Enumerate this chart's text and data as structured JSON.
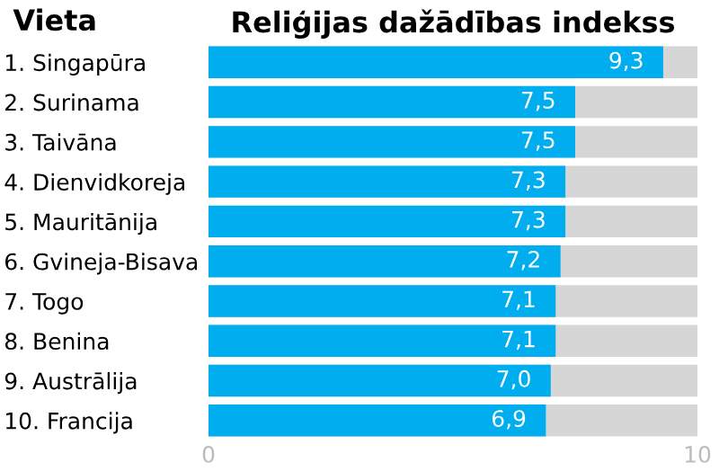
{
  "chart_data": {
    "type": "bar",
    "orientation": "horizontal",
    "title": "Reliģijas dažādības indekss",
    "ylabel": "Vieta",
    "categories": [
      "1. Singapūra",
      "2. Surinama",
      "3. Taivāna",
      "4. Dienvidkoreja",
      "5. Mauritānija",
      "6. Gvineja-Bisava",
      "7. Togo",
      "8. Benina",
      "9. Austrālija",
      "10. Francija"
    ],
    "values": [
      9.3,
      7.5,
      7.5,
      7.3,
      7.3,
      7.2,
      7.1,
      7.1,
      7.0,
      6.9
    ],
    "value_labels": [
      "9,3",
      "7,5",
      "7,5",
      "7,3",
      "7,3",
      "7,2",
      "7,1",
      "7,1",
      "7,0",
      "6,9"
    ],
    "color": "#00aeef",
    "xlim": [
      0,
      10
    ],
    "xticks": [
      0,
      10
    ],
    "grid": false,
    "legend": false
  }
}
